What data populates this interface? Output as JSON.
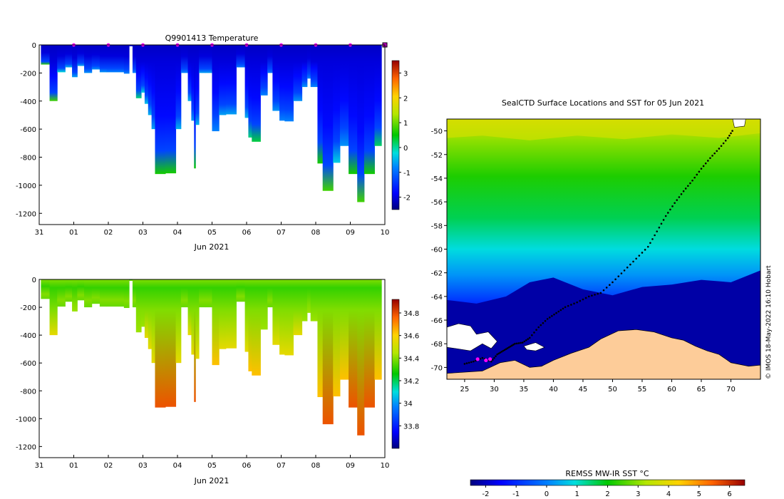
{
  "chart_data": [
    {
      "id": "temperature",
      "type": "heatmap",
      "title": "Q9901413  Temperature",
      "xlabel": "Jun 2021",
      "ylabel": "",
      "xlim": [
        0,
        10
      ],
      "ylim": [
        -1280,
        0
      ],
      "x_ticks": [
        "31",
        "01",
        "02",
        "03",
        "04",
        "05",
        "06",
        "07",
        "08",
        "09",
        "10"
      ],
      "y_ticks": [
        0,
        -200,
        -400,
        -600,
        -800,
        -1000,
        -1200
      ],
      "colorbar": {
        "min": -2.5,
        "max": 3.5,
        "ticks": [
          3,
          2,
          1,
          0,
          -1,
          -2
        ],
        "label": ""
      },
      "surface_markers_x": [
        1,
        2,
        3,
        4,
        5,
        6,
        7,
        8,
        9
      ],
      "profiles": [
        {
          "x": 0.05,
          "w": 0.25,
          "depth": 140,
          "bottom_value": 0.7
        },
        {
          "x": 0.3,
          "w": 0.22,
          "depth": 400,
          "bottom_value": 0.8
        },
        {
          "x": 0.52,
          "w": 0.23,
          "depth": 195,
          "bottom_value": -0.2
        },
        {
          "x": 0.75,
          "w": 0.2,
          "depth": 160,
          "bottom_value": -0.5
        },
        {
          "x": 0.95,
          "w": 0.15,
          "depth": 230,
          "bottom_value": -0.6
        },
        {
          "x": 1.1,
          "w": 0.2,
          "depth": 150,
          "bottom_value": -0.6
        },
        {
          "x": 1.3,
          "w": 0.22,
          "depth": 200,
          "bottom_value": -0.7
        },
        {
          "x": 1.52,
          "w": 0.23,
          "depth": 175,
          "bottom_value": -0.7
        },
        {
          "x": 1.75,
          "w": 0.2,
          "depth": 195,
          "bottom_value": -0.7
        },
        {
          "x": 1.95,
          "w": 0.5,
          "depth": 195,
          "bottom_value": -0.8
        },
        {
          "x": 2.45,
          "w": 0.15,
          "depth": 205,
          "bottom_value": -0.8
        },
        {
          "x": 2.6,
          "w": 0.1,
          "depth": 10,
          "bottom_value": -1.5
        },
        {
          "x": 2.7,
          "w": 0.1,
          "depth": 200,
          "bottom_value": -0.8
        },
        {
          "x": 2.8,
          "w": 0.15,
          "depth": 380,
          "bottom_value": 0.1
        },
        {
          "x": 2.95,
          "w": 0.1,
          "depth": 340,
          "bottom_value": -0.3
        },
        {
          "x": 3.05,
          "w": 0.1,
          "depth": 420,
          "bottom_value": -0.4
        },
        {
          "x": 3.15,
          "w": 0.1,
          "depth": 500,
          "bottom_value": -0.5
        },
        {
          "x": 3.25,
          "w": 0.1,
          "depth": 600,
          "bottom_value": -0.6
        },
        {
          "x": 3.35,
          "w": 0.3,
          "depth": 920,
          "bottom_value": 0.6
        },
        {
          "x": 3.65,
          "w": 0.3,
          "depth": 915,
          "bottom_value": 0.6
        },
        {
          "x": 3.95,
          "w": 0.15,
          "depth": 600,
          "bottom_value": -0.5
        },
        {
          "x": 4.1,
          "w": 0.2,
          "depth": 200,
          "bottom_value": -0.8
        },
        {
          "x": 4.3,
          "w": 0.1,
          "depth": 400,
          "bottom_value": -0.5
        },
        {
          "x": 4.4,
          "w": 0.08,
          "depth": 540,
          "bottom_value": -0.7
        },
        {
          "x": 4.48,
          "w": 0.04,
          "depth": 880,
          "bottom_value": 0.5
        },
        {
          "x": 4.52,
          "w": 0.1,
          "depth": 570,
          "bottom_value": -0.5
        },
        {
          "x": 4.62,
          "w": 0.18,
          "depth": 200,
          "bottom_value": -0.6
        },
        {
          "x": 4.8,
          "w": 0.2,
          "depth": 200,
          "bottom_value": -0.6
        },
        {
          "x": 5.0,
          "w": 0.2,
          "depth": 615,
          "bottom_value": -0.8
        },
        {
          "x": 5.2,
          "w": 0.2,
          "depth": 500,
          "bottom_value": -0.6
        },
        {
          "x": 5.4,
          "w": 0.3,
          "depth": 495,
          "bottom_value": -0.6
        },
        {
          "x": 5.7,
          "w": 0.25,
          "depth": 160,
          "bottom_value": -0.9
        },
        {
          "x": 5.95,
          "w": 0.1,
          "depth": 520,
          "bottom_value": -0.5
        },
        {
          "x": 6.05,
          "w": 0.1,
          "depth": 660,
          "bottom_value": 0.1
        },
        {
          "x": 6.15,
          "w": 0.25,
          "depth": 690,
          "bottom_value": 0.3
        },
        {
          "x": 6.4,
          "w": 0.2,
          "depth": 360,
          "bottom_value": -0.8
        },
        {
          "x": 6.6,
          "w": 0.15,
          "depth": 200,
          "bottom_value": -0.9
        },
        {
          "x": 6.75,
          "w": 0.2,
          "depth": 470,
          "bottom_value": -0.7
        },
        {
          "x": 6.95,
          "w": 0.15,
          "depth": 540,
          "bottom_value": -0.8
        },
        {
          "x": 7.1,
          "w": 0.25,
          "depth": 545,
          "bottom_value": -0.8
        },
        {
          "x": 7.35,
          "w": 0.25,
          "depth": 400,
          "bottom_value": -0.7
        },
        {
          "x": 7.6,
          "w": 0.15,
          "depth": 300,
          "bottom_value": -0.7
        },
        {
          "x": 7.75,
          "w": 0.1,
          "depth": 240,
          "bottom_value": -0.8
        },
        {
          "x": 7.85,
          "w": 0.2,
          "depth": 300,
          "bottom_value": -0.8
        },
        {
          "x": 8.05,
          "w": 0.15,
          "depth": 845,
          "bottom_value": 0.6
        },
        {
          "x": 8.2,
          "w": 0.3,
          "depth": 1040,
          "bottom_value": 0.8
        },
        {
          "x": 8.5,
          "w": 0.2,
          "depth": 840,
          "bottom_value": -0.3
        },
        {
          "x": 8.7,
          "w": 0.25,
          "depth": 720,
          "bottom_value": -0.7
        },
        {
          "x": 8.95,
          "w": 0.25,
          "depth": 920,
          "bottom_value": 0.6
        },
        {
          "x": 9.2,
          "w": 0.2,
          "depth": 1120,
          "bottom_value": 0.8
        },
        {
          "x": 9.4,
          "w": 0.3,
          "depth": 920,
          "bottom_value": 0.6
        },
        {
          "x": 9.7,
          "w": 0.2,
          "depth": 720,
          "bottom_value": 0.2
        }
      ]
    },
    {
      "id": "salinity",
      "type": "heatmap",
      "title": "",
      "xlabel": "Jun 2021",
      "ylabel": "",
      "xlim": [
        0,
        10
      ],
      "ylim": [
        -1280,
        0
      ],
      "x_ticks": [
        "31",
        "01",
        "02",
        "03",
        "04",
        "05",
        "06",
        "07",
        "08",
        "09",
        "10"
      ],
      "y_ticks": [
        0,
        -200,
        -400,
        -600,
        -800,
        -1000,
        -1200
      ],
      "colorbar": {
        "min": 33.6,
        "max": 34.92,
        "ticks": [
          34.8,
          34.6,
          34.4,
          34.2,
          34,
          33.8
        ],
        "tick_labels": [
          "34.8",
          "34.6",
          "34.4",
          "34.2",
          "34",
          "33.8"
        ],
        "label": ""
      }
    },
    {
      "id": "sst_map",
      "type": "heatmap",
      "title": "SealCTD Surface Locations and SST for 05 Jun 2021",
      "xlabel": "",
      "ylabel": "",
      "xlim": [
        22,
        75
      ],
      "ylim": [
        -71,
        -49
      ],
      "x_ticks": [
        25,
        30,
        35,
        40,
        45,
        50,
        55,
        60,
        65,
        70
      ],
      "y_ticks": [
        -50,
        -52,
        -54,
        -56,
        -58,
        -60,
        -62,
        -64,
        -66,
        -68,
        -70
      ],
      "colorbar": {
        "min": -2.5,
        "max": 6.5,
        "ticks": [
          -2,
          -1,
          0,
          1,
          2,
          3,
          4,
          5,
          6
        ],
        "label": "REMSS MW-IR SST °C"
      },
      "track": [
        [
          25.0,
          -69.7
        ],
        [
          26.5,
          -69.5
        ],
        [
          28.0,
          -69.2
        ],
        [
          29.5,
          -69.5
        ],
        [
          30.5,
          -68.9
        ],
        [
          31.5,
          -68.6
        ],
        [
          32.5,
          -68.3
        ],
        [
          33.5,
          -68.0
        ],
        [
          34.8,
          -67.9
        ],
        [
          36.0,
          -67.5
        ],
        [
          37.5,
          -66.6
        ],
        [
          39.0,
          -65.9
        ],
        [
          40.5,
          -65.4
        ],
        [
          42.0,
          -64.9
        ],
        [
          44.0,
          -64.5
        ],
        [
          46.0,
          -64.0
        ],
        [
          48.0,
          -63.7
        ],
        [
          50.0,
          -62.8
        ],
        [
          52.0,
          -61.8
        ],
        [
          54.0,
          -60.8
        ],
        [
          56.0,
          -59.8
        ],
        [
          57.5,
          -58.5
        ],
        [
          59.0,
          -57.2
        ],
        [
          60.5,
          -56.1
        ],
        [
          62.0,
          -55.1
        ],
        [
          63.5,
          -54.2
        ],
        [
          65.0,
          -53.2
        ],
        [
          66.5,
          -52.3
        ],
        [
          68.0,
          -51.5
        ],
        [
          69.5,
          -50.6
        ],
        [
          70.5,
          -49.8
        ]
      ],
      "surface_positions": [
        [
          27.2,
          -69.3
        ],
        [
          28.6,
          -69.4
        ],
        [
          29.3,
          -69.3
        ]
      ]
    }
  ],
  "credit": "© IMOS 18-May-2022 16:10 Hobart"
}
